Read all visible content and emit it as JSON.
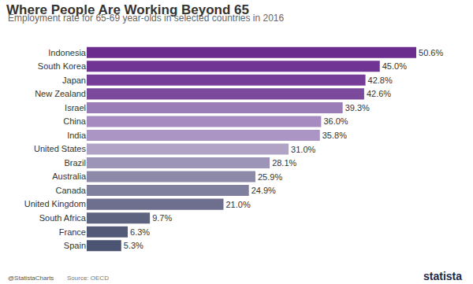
{
  "chart_data": {
    "type": "bar",
    "orientation": "horizontal",
    "title": "Where People Are Working Beyond 65",
    "subtitle": "Employment rate for 65-69 year-olds in selected countries in 2016",
    "categories": [
      "Indonesia",
      "South Korea",
      "Japan",
      "New Zealand",
      "Israel",
      "China",
      "India",
      "United States",
      "Brazil",
      "Australia",
      "Canada",
      "United Kingdom",
      "South Africa",
      "France",
      "Spain"
    ],
    "values": [
      50.6,
      45.0,
      42.8,
      42.6,
      39.3,
      36.0,
      35.8,
      31.0,
      28.1,
      25.9,
      24.9,
      21.0,
      9.7,
      6.3,
      5.3
    ],
    "value_labels": [
      "50.6%",
      "45.0%",
      "42.8%",
      "42.6%",
      "39.3%",
      "36.0%",
      "35.8%",
      "31.0%",
      "28.1%",
      "25.9%",
      "24.9%",
      "21.0%",
      "9.7%",
      "6.3%",
      "5.3%"
    ],
    "colors": [
      "#6b2d8e",
      "#703495",
      "#763d98",
      "#7b4a9c",
      "#9a7cb6",
      "#a68bc0",
      "#ab95c4",
      "#b0a3c6",
      "#9d95b8",
      "#8c8aa8",
      "#7f7f9e",
      "#6e6f8e",
      "#5e6480",
      "#535a78",
      "#4b5472"
    ],
    "data_labels": true,
    "tick_labels": "y",
    "grid": false,
    "source": "Source: OECD",
    "credit": "@StatistaCharts",
    "brand": "statista"
  }
}
